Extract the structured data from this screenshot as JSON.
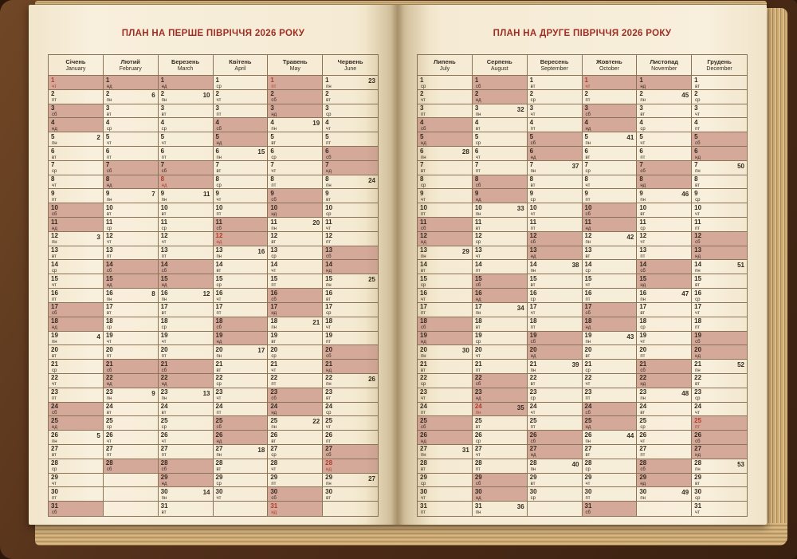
{
  "weekday_abbr": [
    "пн",
    "вт",
    "ср",
    "чт",
    "пт",
    "сб",
    "нд"
  ],
  "colors": {
    "weekend_highlight": "#d5a99a",
    "holiday_red": "#b23a2a",
    "title_maroon": "#9e2e24",
    "ink": "#352a1e",
    "grid_line": "#8a7357",
    "page_cream": "#f6edd8",
    "cover_brown": "#4a2a12"
  },
  "spread": {
    "left": {
      "title": "ПЛАН НА ПЕРШЕ ПІВРІЧЧЯ 2026 РОКУ",
      "months": [
        {
          "uk": "Січень",
          "en": "January",
          "days": 31,
          "first_wd": 3,
          "weeks": {
            "5": 2,
            "12": 3,
            "19": 4,
            "26": 5
          },
          "holidays": [
            1
          ]
        },
        {
          "uk": "Лютий",
          "en": "February",
          "days": 28,
          "first_wd": 6,
          "weeks": {
            "2": 6,
            "9": 7,
            "16": 8,
            "23": 9
          },
          "holidays": []
        },
        {
          "uk": "Березень",
          "en": "March",
          "days": 31,
          "first_wd": 6,
          "weeks": {
            "2": 10,
            "9": 11,
            "16": 12,
            "23": 13,
            "30": 14
          },
          "holidays": [
            8
          ]
        },
        {
          "uk": "Квітень",
          "en": "April",
          "days": 30,
          "first_wd": 2,
          "weeks": {
            "6": 15,
            "13": 16,
            "20": 17,
            "27": 18
          },
          "holidays": [
            12
          ]
        },
        {
          "uk": "Травень",
          "en": "May",
          "days": 31,
          "first_wd": 4,
          "weeks": {
            "4": 19,
            "11": 20,
            "18": 21,
            "25": 22
          },
          "holidays": [
            1,
            31
          ]
        },
        {
          "uk": "Червень",
          "en": "June",
          "days": 30,
          "first_wd": 0,
          "weeks": {
            "1": 23,
            "8": 24,
            "15": 25,
            "22": 26,
            "29": 27
          },
          "holidays": [
            28
          ]
        }
      ]
    },
    "right": {
      "title": "ПЛАН НА ДРУГЕ ПІВРІЧЧЯ 2026 РОКУ",
      "months": [
        {
          "uk": "Липень",
          "en": "July",
          "days": 31,
          "first_wd": 2,
          "weeks": {
            "6": 28,
            "13": 29,
            "20": 30,
            "27": 31
          },
          "holidays": []
        },
        {
          "uk": "Серпень",
          "en": "August",
          "days": 31,
          "first_wd": 5,
          "weeks": {
            "3": 32,
            "10": 33,
            "17": 34,
            "24": 35,
            "31": 36
          },
          "holidays": [
            24
          ]
        },
        {
          "uk": "Вересень",
          "en": "September",
          "days": 30,
          "first_wd": 1,
          "weeks": {
            "7": 37,
            "14": 38,
            "21": 39,
            "28": 40
          },
          "holidays": []
        },
        {
          "uk": "Жовтень",
          "en": "October",
          "days": 31,
          "first_wd": 3,
          "weeks": {
            "5": 41,
            "12": 42,
            "19": 43,
            "26": 44
          },
          "holidays": [
            1
          ]
        },
        {
          "uk": "Листопад",
          "en": "November",
          "days": 30,
          "first_wd": 6,
          "weeks": {
            "2": 45,
            "9": 46,
            "16": 47,
            "23": 48,
            "30": 49
          },
          "holidays": []
        },
        {
          "uk": "Грудень",
          "en": "December",
          "days": 31,
          "first_wd": 1,
          "weeks": {
            "7": 50,
            "14": 51,
            "21": 52,
            "28": 53
          },
          "holidays": [
            25
          ]
        }
      ]
    }
  }
}
